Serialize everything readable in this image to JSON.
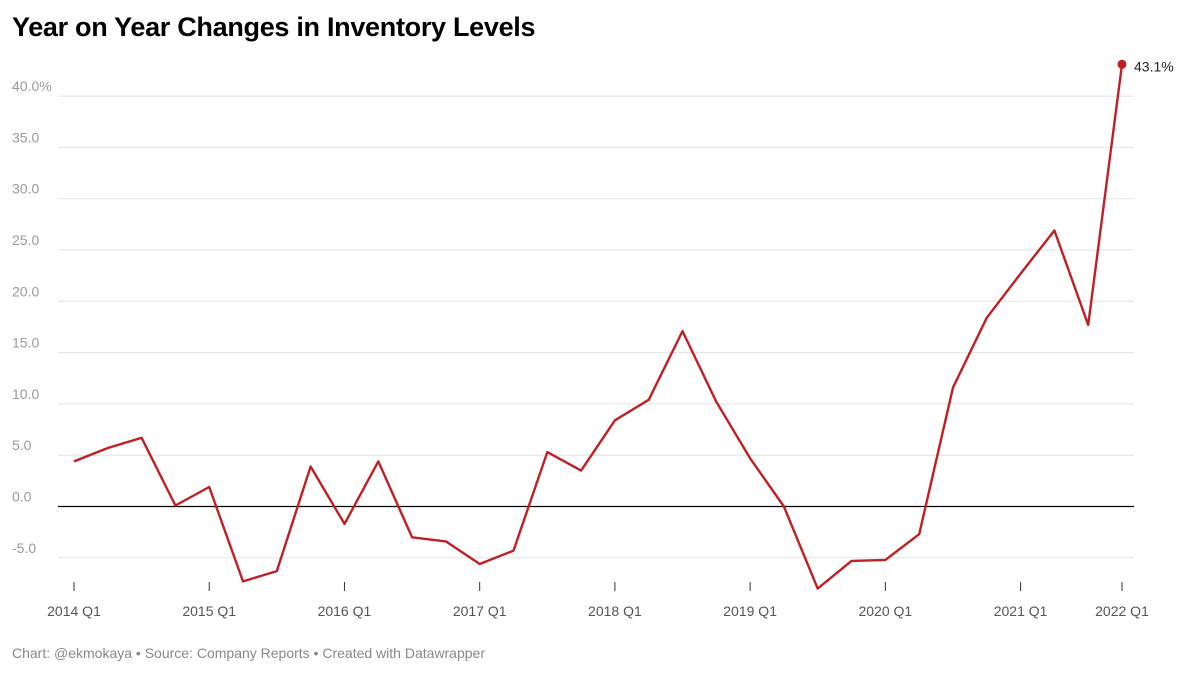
{
  "title": "Year on Year Changes in Inventory Levels",
  "footer": "Chart: @ekmokaya • Source: Company Reports • Created with Datawrapper",
  "colors": {
    "line": "#c01f23",
    "grid": "#e2e2e2",
    "zero": "#000000"
  },
  "chart_data": {
    "type": "line",
    "title": "Year on Year Changes in Inventory Levels",
    "xlabel": "",
    "ylabel": "",
    "x": [
      "2014 Q1",
      "2014 Q2",
      "2014 Q3",
      "2014 Q4",
      "2015 Q1",
      "2015 Q2",
      "2015 Q3",
      "2015 Q4",
      "2016 Q1",
      "2016 Q2",
      "2016 Q3",
      "2016 Q4",
      "2017 Q1",
      "2017 Q2",
      "2017 Q3",
      "2017 Q4",
      "2018 Q1",
      "2018 Q2",
      "2018 Q3",
      "2018 Q4",
      "2019 Q1",
      "2019 Q2",
      "2019 Q3",
      "2019 Q4",
      "2020 Q1",
      "2020 Q2",
      "2020 Q3",
      "2020 Q4",
      "2021 Q1",
      "2021 Q2",
      "2021 Q3",
      "2022 Q1"
    ],
    "x_ticks": [
      "2014 Q1",
      "2015 Q1",
      "2016 Q1",
      "2017 Q1",
      "2018 Q1",
      "2019 Q1",
      "2020 Q1",
      "2021 Q1",
      "2022 Q1"
    ],
    "series": [
      {
        "values": [
          4.4,
          5.7,
          6.7,
          0.1,
          1.9,
          -7.3,
          -6.3,
          3.9,
          -1.7,
          4.4,
          -3.0,
          -3.4,
          -5.6,
          -4.3,
          5.3,
          3.5,
          8.4,
          10.4,
          17.1,
          10.2,
          4.7,
          0.0,
          -8.0,
          -5.3,
          -5.2,
          -2.7,
          11.6,
          18.4,
          22.7,
          26.9,
          17.7,
          43.1
        ]
      }
    ],
    "y_ticks": [
      {
        "value": -5,
        "label": "-5.0"
      },
      {
        "value": 0,
        "label": "0.0"
      },
      {
        "value": 5,
        "label": "5.0"
      },
      {
        "value": 10,
        "label": "10.0"
      },
      {
        "value": 15,
        "label": "15.0"
      },
      {
        "value": 20,
        "label": "20.0"
      },
      {
        "value": 25,
        "label": "25.0"
      },
      {
        "value": 30,
        "label": "30.0"
      },
      {
        "value": 35,
        "label": "35.0"
      },
      {
        "value": 40,
        "label": "40.0%"
      }
    ],
    "ylim": [
      -8,
      43.1
    ],
    "grid": true,
    "end_label": "43.1%"
  }
}
